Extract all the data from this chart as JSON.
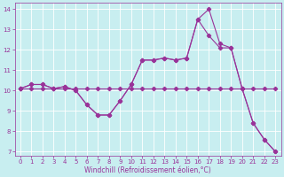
{
  "xlabel": "Windchill (Refroidissement éolien,°C)",
  "bg_color": "#c8eef0",
  "line_color": "#993399",
  "grid_color": "#ffffff",
  "xlim": [
    -0.5,
    23.5
  ],
  "ylim": [
    6.8,
    14.3
  ],
  "yticks": [
    7,
    8,
    9,
    10,
    11,
    12,
    13,
    14
  ],
  "xticks": [
    0,
    1,
    2,
    3,
    4,
    5,
    6,
    7,
    8,
    9,
    10,
    11,
    12,
    13,
    14,
    15,
    16,
    17,
    18,
    19,
    20,
    21,
    22,
    23
  ],
  "series": [
    [
      10.1,
      10.3,
      10.3,
      10.1,
      10.2,
      10.0,
      9.3,
      8.8,
      8.8,
      9.5,
      10.3,
      11.5,
      11.5,
      11.6,
      11.5,
      11.6,
      13.5,
      14.0,
      12.3,
      12.1,
      10.1,
      8.4,
      7.6,
      7.0
    ],
    [
      10.1,
      10.1,
      10.1,
      10.1,
      10.1,
      10.1,
      10.1,
      10.1,
      10.1,
      10.1,
      10.1,
      10.1,
      10.1,
      10.1,
      10.1,
      10.1,
      10.1,
      10.1,
      10.1,
      10.1,
      10.1,
      10.1,
      10.1,
      10.1
    ],
    [
      10.1,
      10.3,
      10.3,
      10.1,
      10.2,
      10.0,
      9.3,
      8.8,
      8.8,
      9.5,
      10.3,
      11.5,
      11.5,
      11.6,
      11.5,
      11.6,
      13.5,
      12.7,
      12.1,
      12.1,
      10.1,
      8.4,
      7.6,
      7.0
    ]
  ],
  "marker": "D",
  "markersize": 2.2,
  "linewidth": 0.8,
  "tick_fontsize": 5.0,
  "xlabel_fontsize": 5.5
}
